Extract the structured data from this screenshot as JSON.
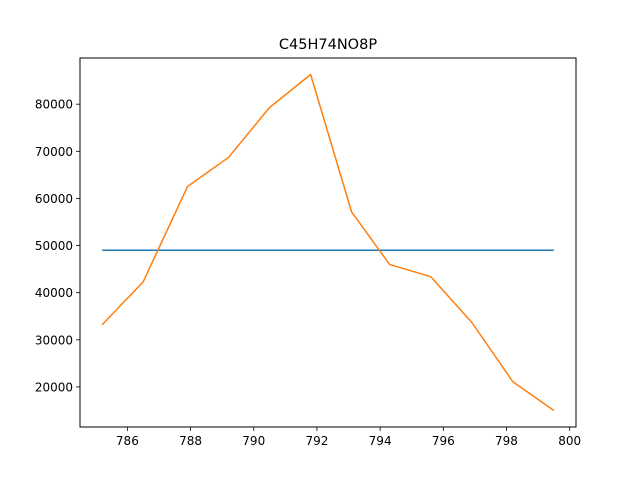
{
  "chart_data": {
    "type": "line",
    "title": "C45H74NO8P",
    "xlabel": "",
    "ylabel": "",
    "xlim": [
      784.5,
      800.2
    ],
    "ylim": [
      11500,
      89800
    ],
    "x_ticks": [
      786,
      788,
      790,
      792,
      794,
      796,
      798,
      800
    ],
    "y_ticks": [
      20000,
      30000,
      40000,
      50000,
      60000,
      70000,
      80000
    ],
    "grid": false,
    "legend": "none",
    "series": [
      {
        "color": "#1f77b4",
        "x": [
          785.2,
          799.5
        ],
        "y": [
          49000,
          49000
        ]
      },
      {
        "color": "#ff7f0e",
        "x": [
          785.2,
          786.5,
          787.9,
          789.2,
          790.5,
          791.8,
          793.1,
          794.3,
          795.6,
          796.9,
          798.2,
          799.5
        ],
        "y": [
          33200,
          42300,
          62500,
          68700,
          79300,
          86300,
          57100,
          46000,
          43400,
          33700,
          21100,
          15000
        ]
      }
    ]
  }
}
